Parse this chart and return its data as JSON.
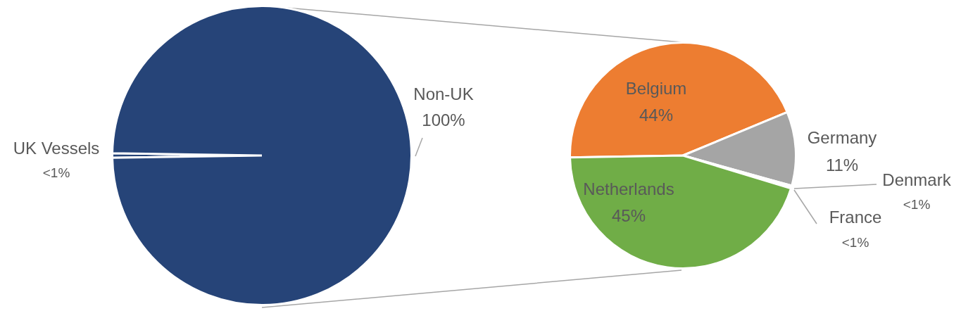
{
  "chart_data": [
    {
      "type": "pie",
      "categories": [
        "UK Vessels",
        "Non-UK"
      ],
      "values": [
        0.5,
        99.5
      ],
      "colors": [
        "#264478",
        "#264478"
      ],
      "value_labels": [
        "<1%",
        "100%"
      ],
      "legend": false
    },
    {
      "type": "pie",
      "categories": [
        "Belgium",
        "Germany",
        "Denmark",
        "France",
        "Netherlands"
      ],
      "values": [
        44,
        10.6,
        0.2,
        0.2,
        45
      ],
      "colors": [
        "#ed7d31",
        "#a5a5a5",
        "#4472c4",
        "#ffc000",
        "#70ad47"
      ],
      "value_labels": [
        "44%",
        "11%",
        "<1%",
        "<1%",
        "45%"
      ],
      "legend": false
    }
  ]
}
